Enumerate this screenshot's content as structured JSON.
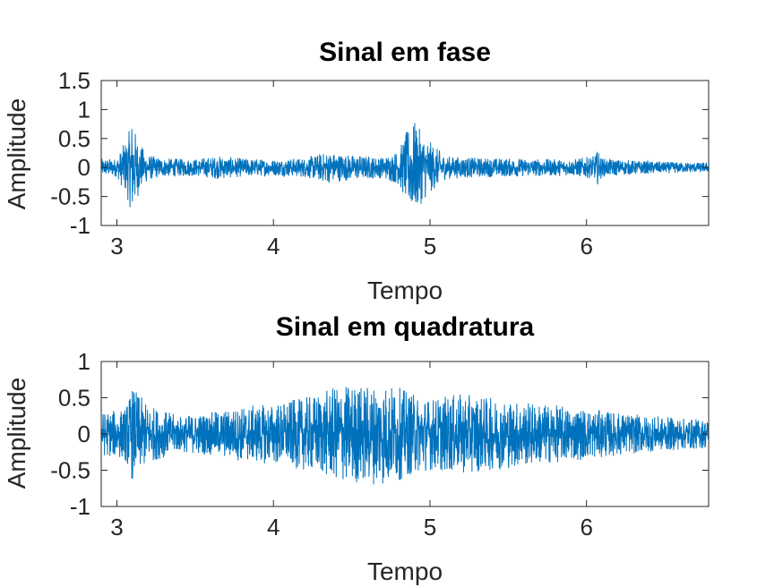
{
  "chart_data": [
    {
      "type": "line",
      "title": "Sinal em fase",
      "xlabel": "Tempo",
      "ylabel": "Amplitude",
      "xlim": [
        2.9,
        6.78
      ],
      "ylim": [
        -1,
        1.5
      ],
      "xticks": [
        "3",
        "4",
        "5",
        "6"
      ],
      "yticks": [
        "-1",
        "-0.5",
        "0",
        "0.5",
        "1",
        "1.5"
      ],
      "color": "#0072BD",
      "grid": false,
      "series": [
        {
          "x": [
            2.9,
            3.0,
            3.06,
            3.08,
            3.1,
            3.12,
            3.15,
            3.2,
            3.3,
            3.5,
            3.65,
            3.8,
            4.0,
            4.2,
            4.35,
            4.5,
            4.7,
            4.8,
            4.87,
            4.9,
            4.95,
            5.0,
            5.1,
            5.3,
            5.5,
            5.7,
            5.9,
            6.05,
            6.07,
            6.1,
            6.3,
            6.5,
            6.78
          ],
          "envelope": [
            0.15,
            0.16,
            0.5,
            0.65,
            0.92,
            0.6,
            0.4,
            0.22,
            0.16,
            0.15,
            0.2,
            0.16,
            0.14,
            0.17,
            0.27,
            0.22,
            0.18,
            0.3,
            0.75,
            0.8,
            0.6,
            0.45,
            0.2,
            0.17,
            0.16,
            0.15,
            0.14,
            0.2,
            0.3,
            0.16,
            0.12,
            0.1,
            0.08
          ]
        }
      ]
    },
    {
      "type": "line",
      "title": "Sinal em quadratura",
      "xlabel": "Tempo",
      "ylabel": "Amplitude",
      "xlim": [
        2.9,
        6.78
      ],
      "ylim": [
        -1,
        1
      ],
      "xticks": [
        "3",
        "4",
        "5",
        "6"
      ],
      "yticks": [
        "-1",
        "-0.5",
        "0",
        "0.5",
        "1"
      ],
      "color": "#0072BD",
      "grid": false,
      "series": [
        {
          "x": [
            2.9,
            3.05,
            3.1,
            3.2,
            3.4,
            3.6,
            3.8,
            4.0,
            4.2,
            4.4,
            4.5,
            4.6,
            4.7,
            4.8,
            4.9,
            5.0,
            5.2,
            5.4,
            5.6,
            5.8,
            6.0,
            6.2,
            6.4,
            6.6,
            6.78
          ],
          "envelope": [
            0.3,
            0.35,
            0.65,
            0.4,
            0.25,
            0.3,
            0.38,
            0.42,
            0.5,
            0.65,
            0.7,
            0.68,
            0.72,
            0.65,
            0.55,
            0.5,
            0.55,
            0.5,
            0.45,
            0.4,
            0.35,
            0.3,
            0.25,
            0.22,
            0.2
          ]
        }
      ]
    }
  ]
}
